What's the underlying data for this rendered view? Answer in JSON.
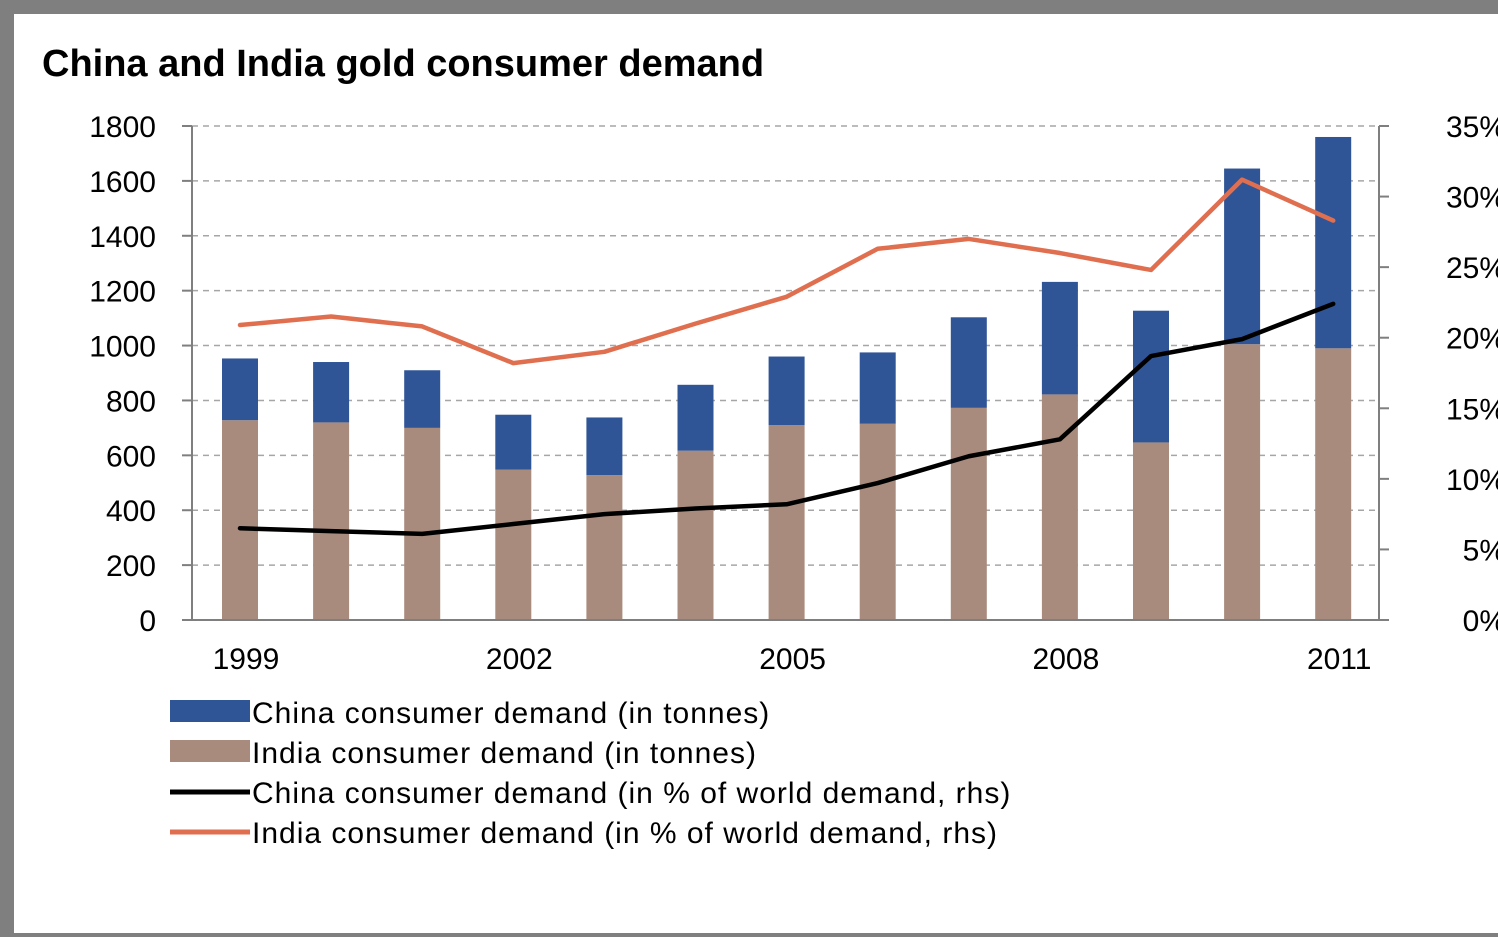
{
  "chart_data": {
    "type": "bar",
    "stacked": true,
    "title": "China and India gold consumer demand",
    "x": [
      1999,
      2000,
      2001,
      2002,
      2003,
      2004,
      2005,
      2006,
      2007,
      2008,
      2009,
      2010,
      2011
    ],
    "x_tick_labels": [
      "1999",
      "2002",
      "2005",
      "2008",
      "2011"
    ],
    "y_left": {
      "ylim": [
        0,
        1800
      ],
      "ticks": [
        "0",
        "200",
        "400",
        "600",
        "800",
        "1000",
        "1200",
        "1400",
        "1600",
        "1800"
      ]
    },
    "y_right": {
      "ylim": [
        0,
        35
      ],
      "ticks": [
        "0%",
        "5%",
        "10%",
        "15%",
        "20%",
        "25%",
        "30%",
        "35%"
      ]
    },
    "grid": "horizontal-dashed",
    "legend_position": "bottom-left",
    "series": [
      {
        "name": "China consumer demand (in tonnes)",
        "type": "bar",
        "axis": "left",
        "color": "#2f5597",
        "values": [
          225,
          220,
          210,
          200,
          210,
          240,
          250,
          260,
          330,
          410,
          480,
          640,
          770
        ]
      },
      {
        "name": "India consumer demand (in tonnes)",
        "type": "bar",
        "axis": "left",
        "color": "#a98b7d",
        "values": [
          728,
          720,
          700,
          548,
          528,
          617,
          710,
          715,
          773,
          822,
          647,
          1005,
          990
        ]
      },
      {
        "name": "China consumer demand (in % of world demand, rhs)",
        "type": "line",
        "axis": "right",
        "color": "#000000",
        "values": [
          6.5,
          6.3,
          6.1,
          6.8,
          7.5,
          7.9,
          8.2,
          9.7,
          11.6,
          12.8,
          18.7,
          19.9,
          22.4
        ]
      },
      {
        "name": "India consumer demand (in % of world demand, rhs)",
        "type": "line",
        "axis": "right",
        "color": "#e06f50",
        "values": [
          20.9,
          21.5,
          20.8,
          18.2,
          19.0,
          21.0,
          22.9,
          26.3,
          27.0,
          26.0,
          24.8,
          31.2,
          28.3
        ]
      }
    ]
  }
}
